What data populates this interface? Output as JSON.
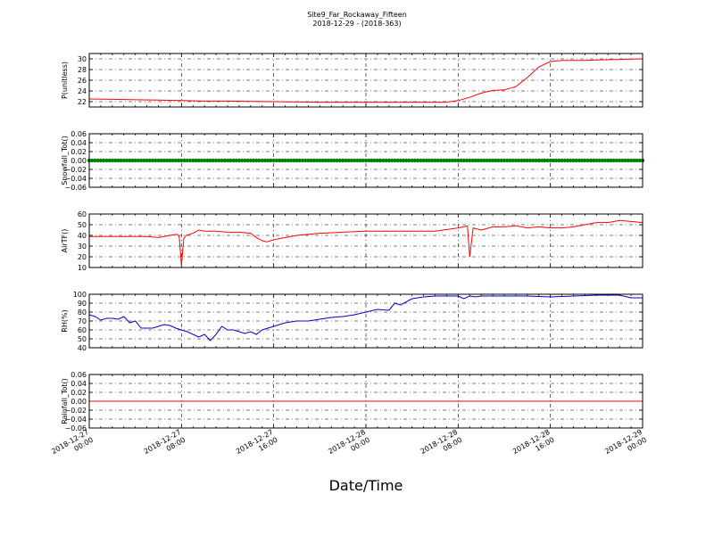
{
  "title": "Site9_Far_Rockaway_Fifteen",
  "subtitle": "2018-12-29 - (2018-363)",
  "xlabel": "Date/Time",
  "x_ticks": [
    {
      "l1": "2018-12-27",
      "l2": "00:00"
    },
    {
      "l1": "2018-12-27",
      "l2": "08:00"
    },
    {
      "l1": "2018-12-27",
      "l2": "16:00"
    },
    {
      "l1": "2018-12-28",
      "l2": "00:00"
    },
    {
      "l1": "2018-12-28",
      "l2": "08:00"
    },
    {
      "l1": "2018-12-28",
      "l2": "16:00"
    },
    {
      "l1": "2018-12-29",
      "l2": "00:00"
    }
  ],
  "chart_data": [
    {
      "type": "line",
      "ylabel": "P(unitless)",
      "ylim": [
        21,
        31
      ],
      "yticks": [
        "22",
        "24",
        "26",
        "28",
        "30"
      ],
      "ytick_values": [
        22,
        24,
        26,
        28,
        30
      ],
      "grid": true,
      "color": "#ff0000",
      "x_hours": [
        0,
        3,
        6,
        8,
        10,
        12,
        16,
        20,
        24,
        28,
        30,
        31,
        32,
        33,
        34,
        35,
        36,
        37,
        38,
        39,
        40,
        40.5,
        41,
        42,
        43,
        44,
        46,
        48
      ],
      "values": [
        22.5,
        22.4,
        22.3,
        22.2,
        22.1,
        22.1,
        22.0,
        21.9,
        21.9,
        21.9,
        21.9,
        21.9,
        22.2,
        22.8,
        23.6,
        24.1,
        24.2,
        24.8,
        26.5,
        28.5,
        29.5,
        29.6,
        29.7,
        29.7,
        29.7,
        29.8,
        29.9,
        30.0
      ]
    },
    {
      "type": "line",
      "ylabel": "Snowfall_Tot()",
      "ylim": [
        -0.06,
        0.06
      ],
      "yticks": [
        "0.06",
        "0.04",
        "0.02",
        "0.00",
        "−0.02",
        "−0.04",
        "−0.06"
      ],
      "ytick_values": [
        0.06,
        0.04,
        0.02,
        0.0,
        -0.02,
        -0.04,
        -0.06
      ],
      "grid": true,
      "color": "#008000",
      "marker": "dot",
      "x_hours": [
        0,
        48
      ],
      "values": [
        0,
        0
      ]
    },
    {
      "type": "line",
      "ylabel": "AirTF()",
      "ylim": [
        10,
        60
      ],
      "yticks": [
        "60",
        "50",
        "40",
        "30",
        "20",
        "10"
      ],
      "ytick_values": [
        60,
        50,
        40,
        30,
        20,
        10
      ],
      "grid": true,
      "color": "#ff0000",
      "x_hours": [
        0,
        2,
        4,
        5,
        6,
        7,
        7.6,
        7.8,
        8.0,
        8.2,
        8.4,
        9,
        9.5,
        10,
        11,
        12,
        13,
        14,
        14.5,
        15,
        15.4,
        16,
        17,
        18,
        20,
        22,
        24,
        26,
        28,
        30,
        32,
        32.5,
        32.8,
        33.0,
        33.3,
        34,
        35,
        36,
        37,
        38,
        39,
        40,
        41,
        42,
        43,
        44,
        45,
        46,
        47,
        48
      ],
      "values": [
        39,
        39,
        39,
        39,
        38,
        40,
        41,
        39,
        12,
        37,
        40,
        42,
        45,
        44,
        44,
        43,
        43,
        42,
        38,
        35,
        34,
        36,
        38,
        40,
        42,
        43,
        44,
        44,
        44,
        44,
        47,
        48,
        49,
        20,
        47,
        45,
        48,
        48,
        49,
        47,
        48,
        47,
        47,
        48,
        50,
        52,
        52,
        54,
        53,
        52
      ]
    },
    {
      "type": "line",
      "ylabel": "RH(%)",
      "ylim": [
        40,
        100
      ],
      "yticks": [
        "100",
        "90",
        "80",
        "70",
        "60",
        "50",
        "40"
      ],
      "ytick_values": [
        100,
        90,
        80,
        70,
        60,
        50,
        40
      ],
      "grid": true,
      "color": "#0000cc",
      "x_hours": [
        0,
        0.5,
        1,
        1.5,
        2,
        2.5,
        3,
        3.5,
        4,
        4.5,
        5,
        5.5,
        6,
        6.5,
        7,
        7.5,
        8,
        8.5,
        9,
        9.5,
        10,
        10.5,
        11,
        11.5,
        12,
        12.5,
        13,
        13.5,
        14,
        14.5,
        15,
        15.5,
        16,
        17,
        18,
        19,
        20,
        21,
        22,
        23,
        24,
        25,
        26,
        26.5,
        27,
        28,
        29,
        30,
        31,
        32,
        32.5,
        33,
        33.5,
        34,
        36,
        38,
        40,
        42,
        44,
        46,
        47,
        48
      ],
      "values": [
        77,
        75,
        71,
        73,
        73,
        72,
        75,
        68,
        70,
        62,
        62,
        62,
        64,
        66,
        65,
        62,
        60,
        58,
        55,
        52,
        55,
        48,
        55,
        64,
        60,
        60,
        58,
        56,
        58,
        55,
        60,
        62,
        64,
        68,
        70,
        70,
        72,
        74,
        75,
        77,
        80,
        83,
        82,
        90,
        88,
        95,
        97,
        98,
        98,
        98,
        95,
        98,
        97,
        98,
        98,
        98,
        97,
        98,
        99,
        99,
        96,
        96
      ]
    },
    {
      "type": "line",
      "ylabel": "Rainfall_Tot()",
      "ylim": [
        -0.06,
        0.06
      ],
      "yticks": [
        "0.06",
        "0.04",
        "0.02",
        "0.00",
        "−0.02",
        "−0.04",
        "−0.06"
      ],
      "ytick_values": [
        0.06,
        0.04,
        0.02,
        0.0,
        -0.02,
        -0.04,
        -0.06
      ],
      "grid": true,
      "color": "#ff0000",
      "x_hours": [
        0,
        48
      ],
      "values": [
        0,
        0
      ]
    }
  ]
}
